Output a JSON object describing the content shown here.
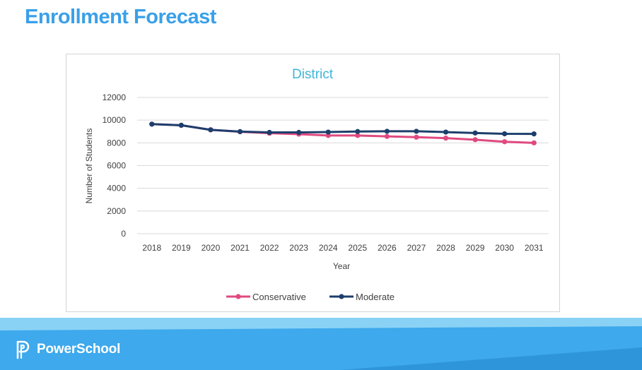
{
  "slide": {
    "title": "Enrollment Forecast",
    "brand_name": "PowerSchool",
    "brand_icon": "powerschool-logo-icon"
  },
  "colors": {
    "title": "#3aa0e8",
    "chart_title": "#3fb5d8",
    "conservative": "#e0497f",
    "moderate": "#1c3e6c",
    "axis_text": "#404040",
    "footer_light": "#8ad2f5",
    "footer_main": "#3ea9ec",
    "footer_dark": "#2f95db"
  },
  "chart_data": {
    "type": "line",
    "title": "District",
    "xlabel": "Year",
    "ylabel": "Number of Students",
    "x": [
      "2018",
      "2019",
      "2020",
      "2021",
      "2022",
      "2023",
      "2024",
      "2025",
      "2026",
      "2027",
      "2028",
      "2029",
      "2030",
      "2031"
    ],
    "ylim": [
      0,
      12000
    ],
    "yticks": [
      "0",
      "2000",
      "4000",
      "6000",
      "8000",
      "10000",
      "12000"
    ],
    "grid": true,
    "legend": "bottom",
    "series": [
      {
        "name": "Conservative",
        "values": [
          9650,
          9550,
          9150,
          8980,
          8850,
          8770,
          8650,
          8650,
          8570,
          8500,
          8420,
          8280,
          8100,
          8000
        ]
      },
      {
        "name": "Moderate",
        "values": [
          9650,
          9550,
          9150,
          8990,
          8920,
          8920,
          8950,
          9000,
          9020,
          9020,
          8950,
          8870,
          8800,
          8790
        ]
      }
    ]
  }
}
